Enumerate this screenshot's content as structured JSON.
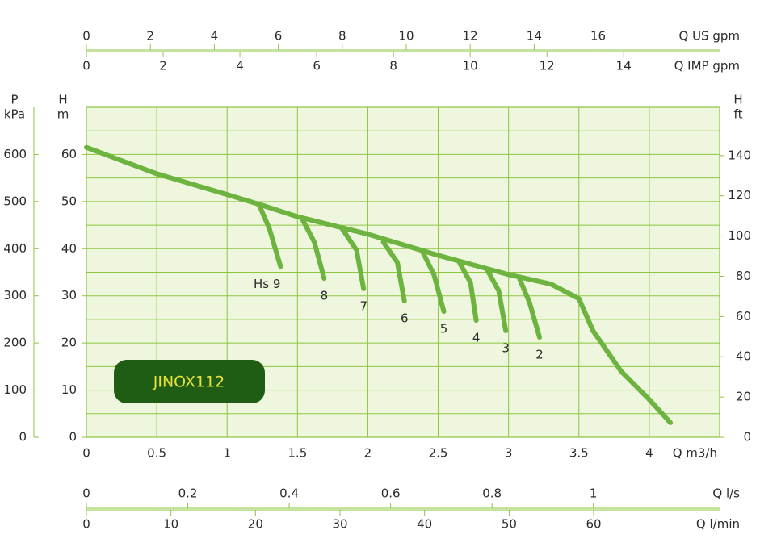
{
  "chart_data": {
    "type": "line",
    "annotation": "JINOX112",
    "x_label": "Q m3/h",
    "xlim": [
      0,
      4.5
    ],
    "xticks": [
      0,
      0.5,
      1,
      1.5,
      2,
      2.5,
      3,
      3.5,
      4
    ],
    "y_label": [
      "H",
      "m"
    ],
    "ylim": [
      0,
      70
    ],
    "yticks": [
      0,
      10,
      20,
      30,
      40,
      50,
      60
    ],
    "y_minor": [
      5,
      15,
      25,
      35,
      45,
      55,
      65
    ],
    "grid": true,
    "color": "#6db33f",
    "p_axis": {
      "label": [
        "P",
        "kPa"
      ],
      "lim": [
        0,
        700
      ],
      "ticks": [
        0,
        100,
        200,
        300,
        400,
        500,
        600
      ]
    },
    "ft_axis": {
      "label": [
        "H",
        "ft"
      ],
      "lim": [
        0,
        164
      ],
      "ticks": [
        0,
        20,
        40,
        60,
        80,
        100,
        120,
        140
      ]
    },
    "usgpm_axis": {
      "label": "Q US gpm",
      "lim": [
        0,
        19.8
      ],
      "ticks": [
        0,
        2,
        4,
        6,
        8,
        10,
        12,
        14,
        16
      ]
    },
    "impgpm_axis": {
      "label": "Q IMP gpm",
      "lim": [
        0,
        16.5
      ],
      "ticks": [
        0,
        2,
        4,
        6,
        8,
        10,
        12,
        14
      ]
    },
    "ls_axis": {
      "label": "Q l/s",
      "lim": [
        0,
        1.249
      ],
      "ticks": [
        0,
        0.2,
        0.4,
        0.6,
        0.8,
        1
      ]
    },
    "lmin_axis": {
      "label": "Q l/min",
      "lim": [
        0,
        74.9
      ],
      "ticks": [
        0,
        10,
        20,
        30,
        40,
        50,
        60
      ]
    },
    "series": [
      {
        "x": [
          0,
          0.5,
          1,
          1.25,
          1.5,
          2,
          2.5,
          3,
          3.3,
          3.5,
          3.6,
          3.8,
          4.0,
          4.15
        ],
        "values": [
          61.5,
          55.9,
          51.5,
          49.2,
          46.8,
          43.1,
          38.6,
          34.5,
          32.5,
          29.4,
          22.6,
          14,
          8,
          3.1
        ]
      },
      {
        "name": "Hs 9",
        "x": [
          1.23,
          1.3,
          1.38
        ],
        "values": [
          49.1,
          44.3,
          36.2
        ]
      },
      {
        "name": "8",
        "x": [
          1.53,
          1.62,
          1.69
        ],
        "values": [
          46.5,
          41.4,
          33.7
        ]
      },
      {
        "name": "7",
        "x": [
          1.82,
          1.92,
          1.97
        ],
        "values": [
          44.1,
          39.7,
          31.5
        ]
      },
      {
        "name": "6",
        "x": [
          2.11,
          2.21,
          2.26
        ],
        "values": [
          41.4,
          37.1,
          28.9
        ]
      },
      {
        "name": "5",
        "x": [
          2.39,
          2.47,
          2.54
        ],
        "values": [
          39.3,
          34.5,
          26.7
        ]
      },
      {
        "name": "4",
        "x": [
          2.65,
          2.73,
          2.77
        ],
        "values": [
          37.1,
          32.8,
          24.8
        ]
      },
      {
        "name": "3",
        "x": [
          2.85,
          2.93,
          2.98
        ],
        "values": [
          35.4,
          31.1,
          22.6
        ]
      },
      {
        "name": "2",
        "x": [
          3.08,
          3.15,
          3.22
        ],
        "values": [
          33.5,
          28.5,
          21.2
        ]
      }
    ]
  }
}
